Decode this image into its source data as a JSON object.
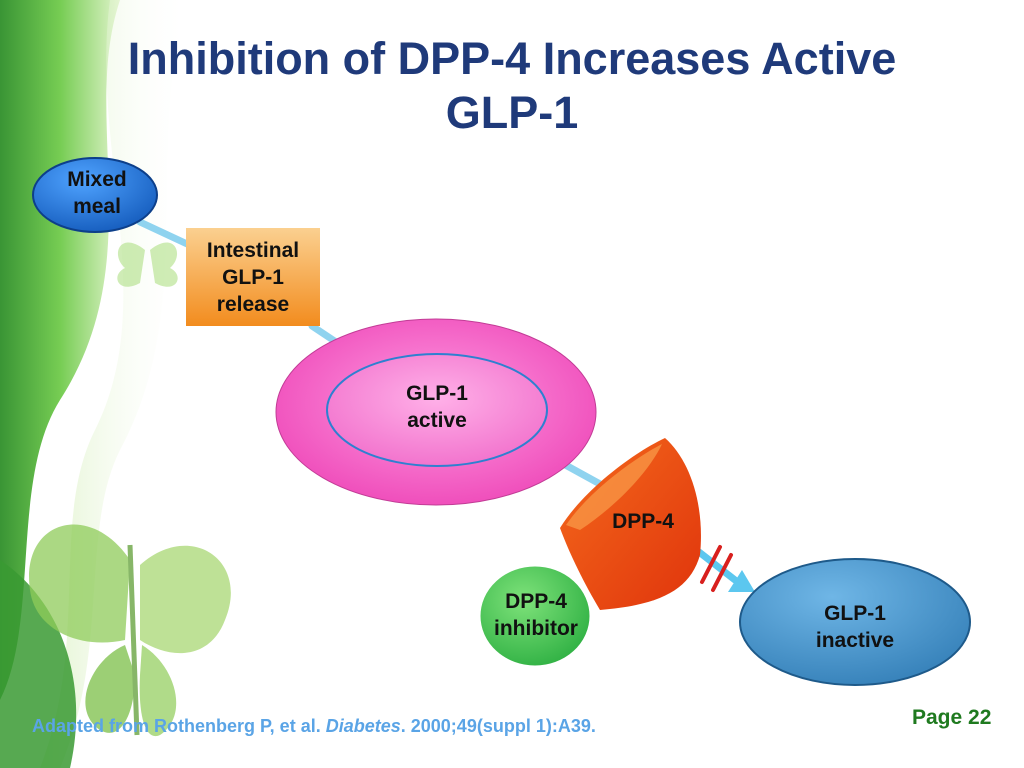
{
  "slide": {
    "title_line1": "Inhibition of DPP-4 Increases Active",
    "title_line2": "GLP-1"
  },
  "diagram": {
    "nodes": {
      "mixed_meal": {
        "line1": "Mixed",
        "line2": "meal",
        "color": "#1e6fd0"
      },
      "intestinal_release": {
        "line1": "Intestinal",
        "line2": "GLP-1",
        "line3": "release",
        "color": "#f7a23a"
      },
      "glp1_active": {
        "line1": "GLP-1",
        "line2": "active",
        "color": "#f35cc4"
      },
      "dpp4": {
        "label": "DPP-4",
        "color": "#f04a14"
      },
      "dpp4_inhibitor": {
        "line1": "DPP-4",
        "line2": "inhibitor",
        "color": "#33c14a"
      },
      "glp1_inactive": {
        "line1": "GLP-1",
        "line2": "inactive",
        "color": "#3b8ec8"
      }
    },
    "connector_color": "#8fd3ef",
    "blocked_marker_color": "#d8201e"
  },
  "footer": {
    "citation_prefix": "Adapted from Rothenberg P, et al. ",
    "citation_journal": "Diabetes",
    "citation_suffix": ". 2000;49(suppl 1):A39.",
    "page_label": "Page 22"
  },
  "decor": {
    "background_theme": "green-ribbon-butterfly",
    "leaf_color": "#4caf3c",
    "butterfly_color": "#8fcc5a"
  }
}
